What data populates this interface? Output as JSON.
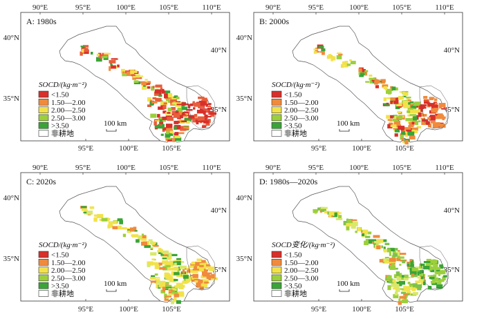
{
  "figure": {
    "panels": [
      {
        "id": "A",
        "title": "A: 1980s",
        "legend_title": "SOCD/(kg·m⁻²)",
        "top_ticks": [
          "90°E",
          "95°E",
          "100°E",
          "105°E",
          "110°E"
        ],
        "bottom_ticks": [
          "95°E",
          "100°E",
          "105°E"
        ],
        "left_ticks": [
          "40°N",
          "35°N"
        ],
        "right_ticks": [
          "40°N",
          "35°N"
        ],
        "scale_label": "100 km",
        "intensity": "high"
      },
      {
        "id": "B",
        "title": "B: 2000s",
        "legend_title": "SOCD/(kg·m⁻²)",
        "top_ticks": [
          "90°E",
          "95°E",
          "100°E",
          "105°E",
          "110°E"
        ],
        "bottom_ticks": [
          "95°E",
          "100°E",
          "105°E"
        ],
        "left_ticks": [
          "40°N",
          "35°N"
        ],
        "right_ticks": [
          "40°N",
          "35°N"
        ],
        "scale_label": "100 km",
        "intensity": "mid"
      },
      {
        "id": "C",
        "title": "C: 2020s",
        "legend_title": "SOCD/(kg·m⁻²)",
        "top_ticks": [
          "90°E",
          "95°E",
          "100°E",
          "105°E",
          "110°E"
        ],
        "bottom_ticks": [
          "95°E",
          "100°E",
          "105°E"
        ],
        "left_ticks": [
          "40°N",
          "35°N"
        ],
        "right_ticks": [
          "40°N",
          "35°N"
        ],
        "scale_label": "100 km",
        "intensity": "low"
      },
      {
        "id": "D",
        "title": "D: 1980s—2020s",
        "legend_title": "SOCD变化/(kg·m⁻²)",
        "top_ticks": [
          "90°E",
          "95°E",
          "100°E",
          "105°E",
          "110°E"
        ],
        "bottom_ticks": [
          "95°E",
          "100°E",
          "105°E"
        ],
        "left_ticks": [
          "40°N",
          "35°N"
        ],
        "right_ticks": [
          "40°N",
          "35°N"
        ],
        "scale_label": "100 km",
        "intensity": "change"
      }
    ],
    "legend_classes": [
      {
        "label": "<1.50",
        "color": "#d7302a"
      },
      {
        "label": "1.50—2.00",
        "color": "#f08a3c"
      },
      {
        "label": "2.00—2.50",
        "color": "#f2e24a"
      },
      {
        "label": "2.50—3.00",
        "color": "#9ccf3c"
      },
      {
        "label": ">3.50",
        "color": "#3aa437"
      },
      {
        "label": "非耕地",
        "color": "#ffffff"
      }
    ]
  }
}
